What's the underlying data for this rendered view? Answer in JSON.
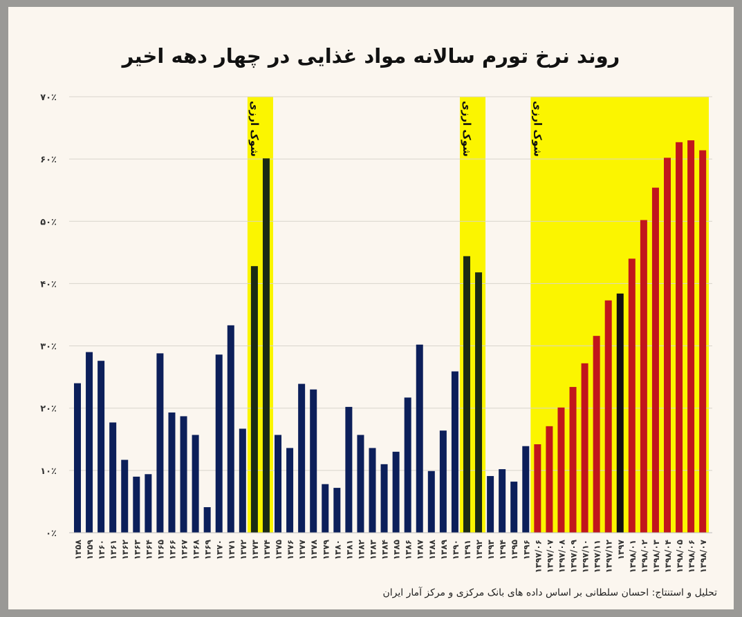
{
  "chart_data": {
    "type": "bar",
    "title": "روند نرخ تورم سالانه مواد غذایی در چهار دهه اخیر",
    "xlabel": "",
    "ylabel": "",
    "ylim": [
      0,
      70
    ],
    "grid": true,
    "yticks": [
      {
        "value": 0,
        "label": "۰٪"
      },
      {
        "value": 10,
        "label": "۱۰٪"
      },
      {
        "value": 20,
        "label": "۲۰٪"
      },
      {
        "value": 30,
        "label": "۳۰٪"
      },
      {
        "value": 40,
        "label": "۴۰٪"
      },
      {
        "value": 50,
        "label": "۵۰٪"
      },
      {
        "value": 60,
        "label": "۶۰٪"
      },
      {
        "value": 70,
        "label": "۷۰٪"
      }
    ],
    "categories": [
      "۱۳۵۸",
      "۱۳۵۹",
      "۱۳۶۰",
      "۱۳۶۱",
      "۱۳۶۲",
      "۱۳۶۳",
      "۱۳۶۴",
      "۱۳۶۵",
      "۱۳۶۶",
      "۱۳۶۷",
      "۱۳۶۸",
      "۱۳۶۹",
      "۱۳۷۰",
      "۱۳۷۱",
      "۱۳۷۲",
      "۱۳۷۳",
      "۱۳۷۴",
      "۱۳۷۵",
      "۱۳۷۶",
      "۱۳۷۷",
      "۱۳۷۸",
      "۱۳۷۹",
      "۱۳۸۰",
      "۱۳۸۱",
      "۱۳۸۲",
      "۱۳۸۳",
      "۱۳۸۴",
      "۱۳۸۵",
      "۱۳۸۶",
      "۱۳۸۷",
      "۱۳۸۸",
      "۱۳۸۹",
      "۱۳۹۰",
      "۱۳۹۱",
      "۱۳۹۲",
      "۱۳۹۳",
      "۱۳۹۴",
      "۱۳۹۵",
      "۱۳۹۶",
      "۱۳۹۷/۰۶",
      "۱۳۹۷/۰۷",
      "۱۳۹۷/۰۸",
      "۱۳۹۷/۰۹",
      "۱۳۹۷/۱۰",
      "۱۳۹۷/۱۱",
      "۱۳۹۷/۱۲",
      "۱۳۹۷",
      "۱۳۹۸/۰۱",
      "۱۳۹۸/۰۲",
      "۱۳۹۸/۰۳",
      "۱۳۹۸/۰۴",
      "۱۳۹۸/۰۵",
      "۱۳۹۸/۰۶",
      "۱۳۹۸/۰۷"
    ],
    "values": [
      24.0,
      29.0,
      27.6,
      17.7,
      11.7,
      9.0,
      9.4,
      28.8,
      19.3,
      18.7,
      15.7,
      4.1,
      28.6,
      33.3,
      16.7,
      42.8,
      60.1,
      15.7,
      13.6,
      23.9,
      23.0,
      7.8,
      7.2,
      20.2,
      15.7,
      13.6,
      11.0,
      13.0,
      21.7,
      30.2,
      9.9,
      16.4,
      25.9,
      44.4,
      41.8,
      9.1,
      10.2,
      8.2,
      13.9,
      14.2,
      17.1,
      20.1,
      23.4,
      27.2,
      31.6,
      37.3,
      38.4,
      44.0,
      50.2,
      55.4,
      60.2,
      62.7,
      63.0,
      61.4
    ],
    "bar_colors": {
      "annual": "#0c1f5a",
      "shock_annual": "#1b2a14",
      "monthly": "#c1161c",
      "annual_1397": "#111111"
    },
    "bar_groups": [
      "annual",
      "annual",
      "annual",
      "annual",
      "annual",
      "annual",
      "annual",
      "annual",
      "annual",
      "annual",
      "annual",
      "annual",
      "annual",
      "annual",
      "annual",
      "shock_annual",
      "shock_annual",
      "annual",
      "annual",
      "annual",
      "annual",
      "annual",
      "annual",
      "annual",
      "annual",
      "annual",
      "annual",
      "annual",
      "annual",
      "annual",
      "annual",
      "annual",
      "annual",
      "shock_annual",
      "shock_annual",
      "annual",
      "annual",
      "annual",
      "annual",
      "monthly",
      "monthly",
      "monthly",
      "monthly",
      "monthly",
      "monthly",
      "monthly",
      "annual_1397",
      "monthly",
      "monthly",
      "monthly",
      "monthly",
      "monthly",
      "monthly",
      "monthly"
    ],
    "highlight_color": "#fbf500",
    "annotations": [
      {
        "label": "شوک ارزی",
        "from": "۱۳۷۳",
        "to": "۱۳۷۴"
      },
      {
        "label": "شوک ارزی",
        "from": "۱۳۹۱",
        "to": "۱۳۹۲"
      },
      {
        "label": "شوک ارزی",
        "from": "۱۳۹۷/۰۶",
        "to": "۱۳۹۸/۰۷"
      }
    ]
  },
  "credit": "تحلیل و استنتاج: احسان سلطانی بر اساس داده های بانک مرکزی و مرکز آمار ایران"
}
